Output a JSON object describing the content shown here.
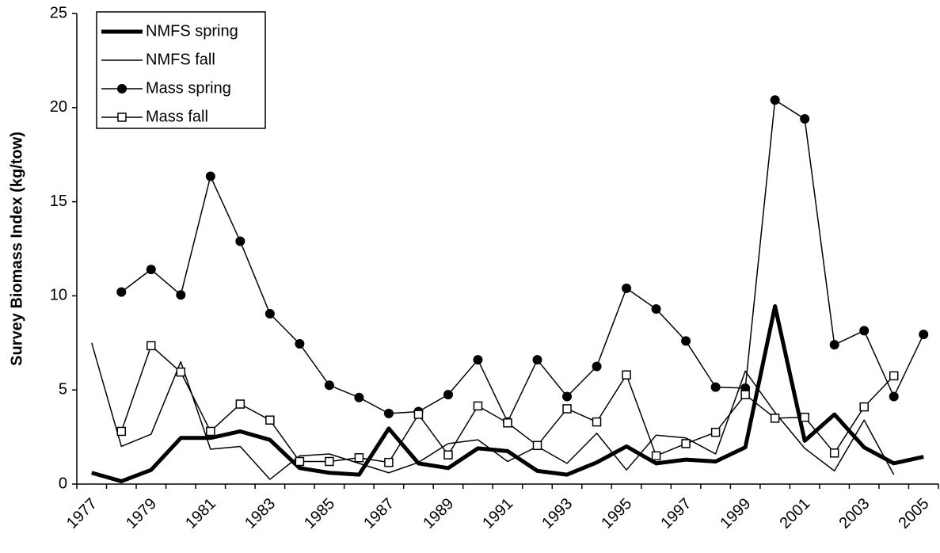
{
  "chart_data": {
    "type": "line",
    "y_label": "Survey Biomass Index (kg/tow)",
    "categories": [
      "1977",
      null,
      "1979",
      null,
      "1981",
      null,
      "1983",
      null,
      "1985",
      null,
      "1987",
      null,
      "1989",
      null,
      "1991",
      null,
      "1993",
      null,
      "1995",
      null,
      "1997",
      null,
      "1999",
      null,
      "2001",
      null,
      "2003",
      null,
      "2005"
    ],
    "ylim": [
      0,
      25
    ],
    "yticks": [
      0,
      5,
      10,
      15,
      20,
      25
    ],
    "grid": false,
    "legend": "upper left",
    "series": [
      {
        "name": "NMFS spring",
        "color": "#000000",
        "line_width": 5,
        "marker": null,
        "values": [
          0.6,
          0.15,
          0.75,
          2.45,
          2.45,
          2.8,
          2.35,
          0.85,
          0.6,
          0.5,
          2.95,
          1.1,
          0.85,
          1.9,
          1.75,
          0.7,
          0.5,
          1.15,
          2.0,
          1.1,
          1.3,
          1.2,
          1.95,
          9.45,
          2.3,
          3.7,
          1.95,
          1.1,
          1.45
        ]
      },
      {
        "name": "NMFS fall",
        "color": "#000000",
        "line_width": 1.5,
        "marker": null,
        "values": [
          7.5,
          2.0,
          2.65,
          6.5,
          1.85,
          2.0,
          0.25,
          1.5,
          1.6,
          1.1,
          0.6,
          1.15,
          2.15,
          2.35,
          1.2,
          2.0,
          1.1,
          2.7,
          0.75,
          2.6,
          2.45,
          1.6,
          6.0,
          3.8,
          1.9,
          0.7,
          3.4,
          0.5,
          null
        ]
      },
      {
        "name": "Mass spring",
        "color": "#000000",
        "line_width": 1.5,
        "marker": "circle",
        "values": [
          null,
          10.2,
          11.4,
          10.05,
          16.35,
          12.9,
          9.05,
          7.45,
          5.25,
          4.6,
          3.75,
          3.85,
          4.75,
          6.6,
          3.3,
          6.6,
          4.65,
          6.25,
          10.4,
          9.3,
          7.6,
          5.15,
          5.1,
          20.4,
          19.4,
          7.4,
          8.15,
          4.65,
          7.95
        ]
      },
      {
        "name": "Mass fall",
        "color": "#000000",
        "line_width": 1.5,
        "marker": "square",
        "values": [
          null,
          2.8,
          7.35,
          5.95,
          2.8,
          4.25,
          3.4,
          1.2,
          1.2,
          1.4,
          1.15,
          3.7,
          1.55,
          4.15,
          3.25,
          2.05,
          4.0,
          3.3,
          5.8,
          1.5,
          2.15,
          2.75,
          4.75,
          3.5,
          3.55,
          1.65,
          4.1,
          5.75,
          null
        ]
      }
    ]
  }
}
